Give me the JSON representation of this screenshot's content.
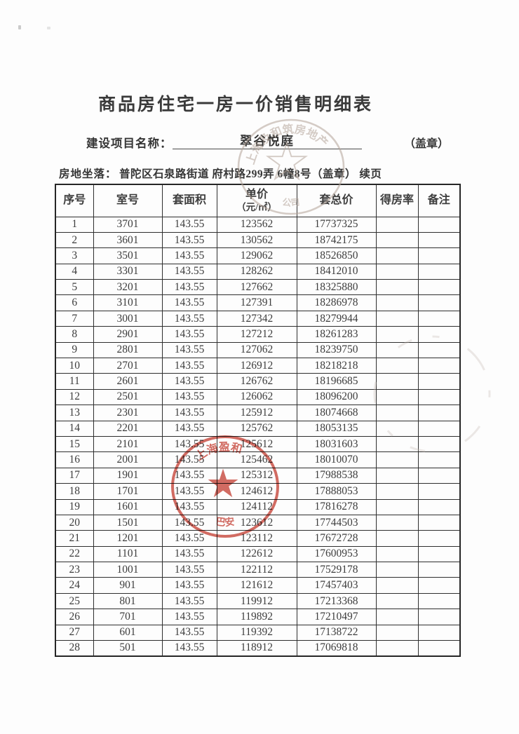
{
  "page": {
    "title": "商品房住宅一房一价销售明细表",
    "project_label": "建设项目名称：",
    "project_name": "翠谷悦庭",
    "seal_note": "（盖章）",
    "location_label": "房地坐落：",
    "location_value": "普陀区石泉路街道  府村路299弄 6幢8号（盖章）  续页"
  },
  "table": {
    "headers": [
      "序号",
      "室号",
      "套面积",
      "单价",
      "套总价",
      "得房率",
      "备注"
    ],
    "unit_price_subheader": "（元/㎡）",
    "rows": [
      [
        "1",
        "3701",
        "143.55",
        "123562",
        "17737325",
        "",
        ""
      ],
      [
        "2",
        "3601",
        "143.55",
        "130562",
        "18742175",
        "",
        ""
      ],
      [
        "3",
        "3501",
        "143.55",
        "129062",
        "18526850",
        "",
        ""
      ],
      [
        "4",
        "3301",
        "143.55",
        "128262",
        "18412010",
        "",
        ""
      ],
      [
        "5",
        "3201",
        "143.55",
        "127662",
        "18325880",
        "",
        ""
      ],
      [
        "6",
        "3101",
        "143.55",
        "127391",
        "18286978",
        "",
        ""
      ],
      [
        "7",
        "3001",
        "143.55",
        "127342",
        "18279944",
        "",
        ""
      ],
      [
        "8",
        "2901",
        "143.55",
        "127212",
        "18261283",
        "",
        ""
      ],
      [
        "9",
        "2801",
        "143.55",
        "127062",
        "18239750",
        "",
        ""
      ],
      [
        "10",
        "2701",
        "143.55",
        "126912",
        "18218218",
        "",
        ""
      ],
      [
        "11",
        "2601",
        "143.55",
        "126762",
        "18196685",
        "",
        ""
      ],
      [
        "12",
        "2501",
        "143.55",
        "126062",
        "18096200",
        "",
        ""
      ],
      [
        "13",
        "2301",
        "143.55",
        "125912",
        "18074668",
        "",
        ""
      ],
      [
        "14",
        "2201",
        "143.55",
        "125762",
        "18053135",
        "",
        ""
      ],
      [
        "15",
        "2101",
        "143.55",
        "125612",
        "18031603",
        "",
        ""
      ],
      [
        "16",
        "2001",
        "143.55",
        "125462",
        "18010070",
        "",
        ""
      ],
      [
        "17",
        "1901",
        "143.55",
        "125312",
        "17988538",
        "",
        ""
      ],
      [
        "18",
        "1701",
        "143.55",
        "124612",
        "17888053",
        "",
        ""
      ],
      [
        "19",
        "1601",
        "143.55",
        "124112",
        "17816278",
        "",
        ""
      ],
      [
        "20",
        "1501",
        "143.55",
        "123612",
        "17744503",
        "",
        ""
      ],
      [
        "21",
        "1201",
        "143.55",
        "123112",
        "17672728",
        "",
        ""
      ],
      [
        "22",
        "1101",
        "143.55",
        "122612",
        "17600953",
        "",
        ""
      ],
      [
        "23",
        "1001",
        "143.55",
        "122112",
        "17529178",
        "",
        ""
      ],
      [
        "24",
        "901",
        "143.55",
        "121612",
        "17457403",
        "",
        ""
      ],
      [
        "25",
        "801",
        "143.55",
        "119912",
        "17213368",
        "",
        ""
      ],
      [
        "26",
        "701",
        "143.55",
        "119892",
        "17210497",
        "",
        ""
      ],
      [
        "27",
        "601",
        "143.55",
        "119392",
        "17138722",
        "",
        ""
      ],
      [
        "28",
        "501",
        "143.55",
        "118912",
        "17069818",
        "",
        ""
      ]
    ]
  },
  "stamps": {
    "top_company_stamp": {
      "arc_text": "上海及和筑房地产",
      "bottom_text": "公司",
      "color": "#b3a398"
    },
    "red_company_stamp": {
      "arc_text": "上海盈和",
      "bottom_text": "巴安",
      "color": "#c8473c"
    },
    "faint_partial_stamp": {
      "color": "#c2b8b0"
    }
  }
}
